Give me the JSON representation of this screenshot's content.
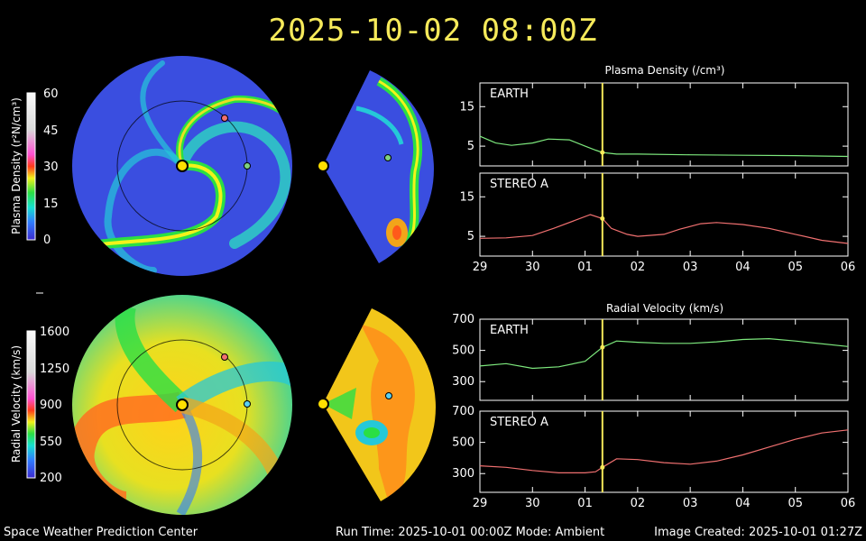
{
  "title": "2025-10-02  08:00Z",
  "footer": {
    "left": "Space Weather Prediction Center",
    "middle": "Run Time: 2025-10-01 00:00Z  Mode: Ambient",
    "right": "Image Created: 2025-10-01 01:27Z"
  },
  "colorbars": {
    "density": {
      "label": "Plasma Density (r²N/cm³)",
      "ticks": [
        "60",
        "45",
        "30",
        "15",
        "0"
      ]
    },
    "velocity": {
      "label": "Radial Velocity (km/s)",
      "ticks": [
        "1600",
        "1250",
        "900",
        "550",
        "200"
      ]
    }
  },
  "colors": {
    "earth_series": "#7de87d",
    "stereo_series": "#f07070",
    "time_marker": "#f6ea5a",
    "earth_marker": "#7fd27f",
    "stereo_marker": "#f07070",
    "axes": "#ffffff"
  },
  "chart_data": [
    {
      "type": "line",
      "title": "Plasma Density (/cm³)",
      "panel": "EARTH",
      "x_ticks": [
        "29",
        "30",
        "01",
        "02",
        "03",
        "04",
        "05",
        "06"
      ],
      "y_ticks": [
        15,
        5
      ],
      "ylim": [
        0,
        21
      ],
      "marker_x": 2.33,
      "series": [
        {
          "name": "EARTH",
          "x": [
            0,
            0.3,
            0.6,
            1.0,
            1.3,
            1.7,
            2.0,
            2.2,
            2.33,
            2.6,
            3.0,
            4.0,
            5.0,
            6.0,
            7.0
          ],
          "y": [
            7.5,
            5.8,
            5.2,
            5.8,
            6.8,
            6.6,
            5.0,
            4.0,
            3.4,
            3.0,
            3.0,
            2.8,
            2.7,
            2.6,
            2.4
          ]
        }
      ]
    },
    {
      "type": "line",
      "panel": "STEREO A",
      "x_ticks": [
        "29",
        "30",
        "01",
        "02",
        "03",
        "04",
        "05",
        "06"
      ],
      "y_ticks": [
        15,
        5
      ],
      "ylim": [
        0,
        21
      ],
      "marker_x": 2.33,
      "series": [
        {
          "name": "STEREO A",
          "x": [
            0,
            0.5,
            1.0,
            1.4,
            1.8,
            2.1,
            2.33,
            2.5,
            2.8,
            3.0,
            3.5,
            3.8,
            4.2,
            4.5,
            5.0,
            5.5,
            6.0,
            6.5,
            7.0
          ],
          "y": [
            4.5,
            4.6,
            5.2,
            7.0,
            9.0,
            10.5,
            9.5,
            7.0,
            5.5,
            5.0,
            5.5,
            6.8,
            8.2,
            8.5,
            8.0,
            7.0,
            5.5,
            4.0,
            3.2
          ]
        }
      ]
    },
    {
      "type": "line",
      "title": "Radial Velocity (km/s)",
      "panel": "EARTH",
      "x_ticks": [
        "29",
        "30",
        "01",
        "02",
        "03",
        "04",
        "05",
        "06"
      ],
      "y_ticks": [
        700,
        500,
        300
      ],
      "ylim": [
        180,
        700
      ],
      "marker_x": 2.33,
      "series": [
        {
          "name": "EARTH",
          "x": [
            0,
            0.5,
            1.0,
            1.5,
            2.0,
            2.33,
            2.6,
            3.0,
            3.5,
            4.0,
            4.5,
            5.0,
            5.5,
            6.0,
            7.0
          ],
          "y": [
            400,
            415,
            385,
            395,
            430,
            520,
            560,
            552,
            545,
            545,
            555,
            570,
            575,
            560,
            525
          ]
        }
      ]
    },
    {
      "type": "line",
      "panel": "STEREO A",
      "x_ticks": [
        "29",
        "30",
        "01",
        "02",
        "03",
        "04",
        "05",
        "06"
      ],
      "y_ticks": [
        700,
        500,
        300
      ],
      "ylim": [
        180,
        700
      ],
      "marker_x": 2.33,
      "series": [
        {
          "name": "STEREO A",
          "x": [
            0,
            0.5,
            1.0,
            1.5,
            2.0,
            2.2,
            2.33,
            2.6,
            3.0,
            3.5,
            4.0,
            4.5,
            5.0,
            5.5,
            6.0,
            6.5,
            7.0
          ],
          "y": [
            350,
            340,
            320,
            305,
            305,
            312,
            340,
            395,
            390,
            370,
            360,
            380,
            420,
            470,
            520,
            560,
            580
          ]
        }
      ]
    }
  ]
}
